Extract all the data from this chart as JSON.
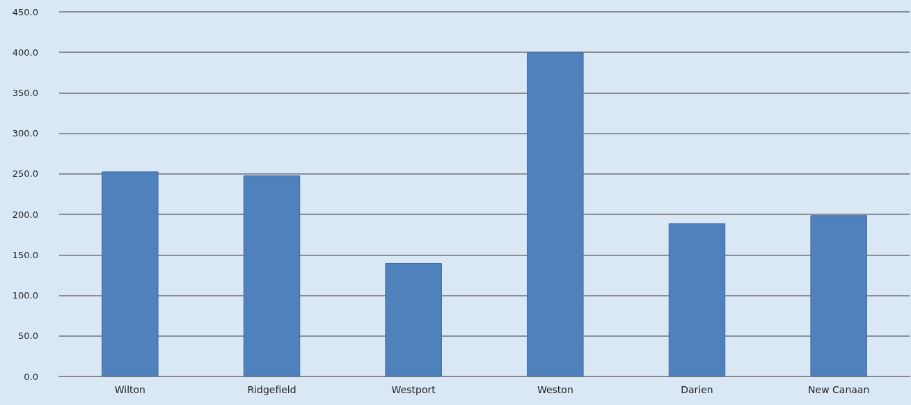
{
  "chart_data": {
    "type": "bar",
    "categories": [
      "Wilton",
      "Ridgefield",
      "Westport",
      "Weston",
      "Darien",
      "New Canaan"
    ],
    "values": [
      253,
      248,
      140,
      400,
      189,
      199
    ],
    "color": "#4f81bd",
    "ylim": [
      0,
      450
    ],
    "yticks": [
      {
        "value": 0,
        "label": "0.0"
      },
      {
        "value": 50,
        "label": "50.0"
      },
      {
        "value": 100,
        "label": "100.0"
      },
      {
        "value": 150,
        "label": "150.0"
      },
      {
        "value": 200,
        "label": "200.0"
      },
      {
        "value": 250,
        "label": "250.0"
      },
      {
        "value": 300,
        "label": "300.0"
      },
      {
        "value": 350,
        "label": "350.0"
      },
      {
        "value": 400,
        "label": "400.0"
      },
      {
        "value": 450,
        "label": "450.0"
      }
    ],
    "grid": "y"
  }
}
